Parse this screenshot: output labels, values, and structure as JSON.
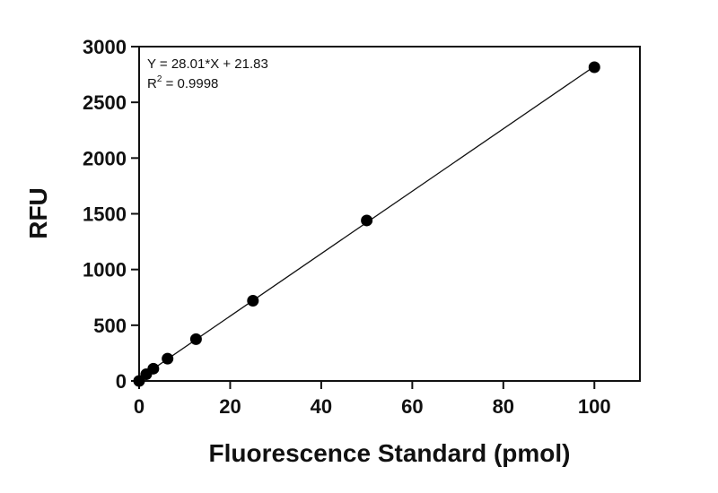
{
  "chart_data": {
    "type": "scatter",
    "xlabel": "Fluorescence Standard (pmol)",
    "ylabel": "RFU",
    "xlim": [
      0,
      110
    ],
    "ylim": [
      0,
      3000
    ],
    "x_ticks": [
      0,
      20,
      40,
      60,
      80,
      100
    ],
    "y_ticks": [
      0,
      500,
      1000,
      1500,
      2000,
      2500,
      3000
    ],
    "x_tick_labels": [
      "0",
      "20",
      "40",
      "60",
      "80",
      "100"
    ],
    "y_tick_labels": [
      "0",
      "500",
      "1000",
      "1500",
      "2000",
      "2500",
      "3000"
    ],
    "grid": false,
    "series": [
      {
        "x": [
          0,
          1.5625,
          3.125,
          6.25,
          12.5,
          25,
          50,
          100
        ],
        "y": [
          0,
          60,
          110,
          200,
          375,
          720,
          1440,
          2815
        ]
      }
    ],
    "fit": {
      "slope": 28.01,
      "intercept": 21.83,
      "equation_text": "Y = 28.01*X + 21.83",
      "r2_prefix": "R",
      "r2_sup": "2",
      "r2_value_text": " = 0.9998",
      "x_range": [
        0,
        100
      ]
    }
  }
}
